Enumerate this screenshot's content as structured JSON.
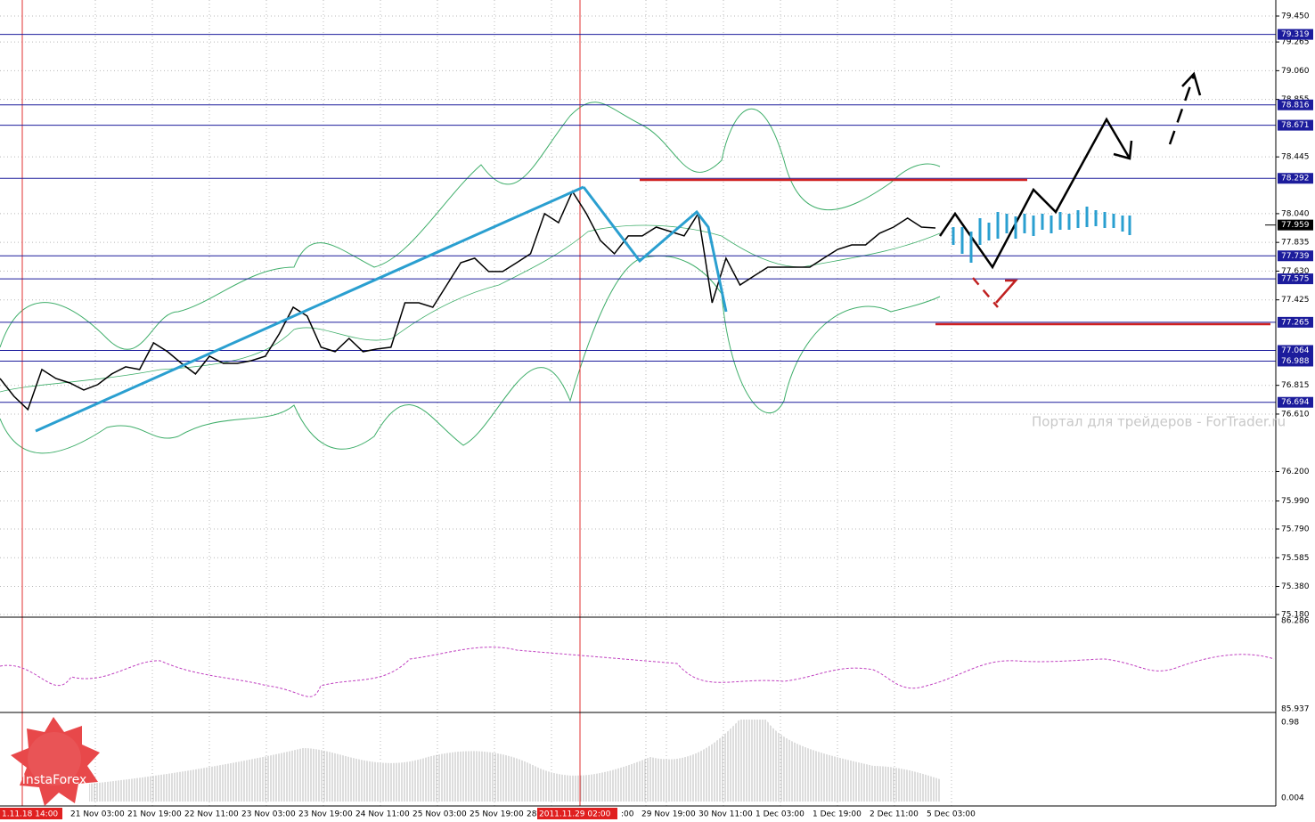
{
  "chart_data": {
    "type": "line",
    "values": [
      76.864,
      76.737,
      76.642,
      76.928,
      76.864,
      76.832,
      76.782,
      76.82,
      76.896,
      76.947,
      76.928,
      77.118,
      77.055,
      76.972,
      76.896,
      77.023,
      76.972,
      76.972,
      76.991,
      77.023,
      77.182,
      77.372,
      77.309,
      77.087,
      77.055,
      77.15,
      77.055,
      77.074,
      77.087,
      77.404,
      77.404,
      77.372,
      77.531,
      77.69,
      77.722,
      77.627,
      77.627,
      77.69,
      77.754,
      78.04,
      77.976,
      78.198,
      78.04,
      77.849,
      77.754,
      77.881,
      77.881,
      77.944,
      77.913,
      77.881,
      78.04,
      77.404,
      77.722,
      77.531,
      77.595,
      77.658,
      77.658,
      77.658,
      77.658,
      77.722,
      77.785,
      77.817,
      77.817,
      77.9,
      77.944,
      78.008,
      77.944,
      77.938
    ],
    "color": "#000000",
    "ylim": [
      75.18,
      79.45
    ],
    "yticks": [
      {
        "value": 79.45,
        "label": "79.450"
      },
      79.265,
      {
        "value": 79.06,
        "label": "79.060"
      },
      78.855,
      78.445,
      {
        "value": 78.04,
        "label": "78.040"
      },
      77.835,
      {
        "value": 77.63,
        "label": "77.630"
      },
      77.425,
      76.815,
      {
        "value": 76.61,
        "label": "76.610"
      },
      {
        "value": 76.2,
        "label": "76.200"
      },
      {
        "value": 75.99,
        "label": "75.990"
      },
      {
        "value": 75.79,
        "label": "75.790"
      },
      75.585,
      {
        "value": 75.38,
        "label": "75.380"
      },
      {
        "value": 75.18,
        "label": "75.180"
      }
    ],
    "levels": [
      79.319,
      78.816,
      78.671,
      78.292,
      77.739,
      77.575,
      77.265,
      77.064,
      76.988,
      76.694
    ],
    "current": 77.959,
    "x_labels": [
      "1.11.18 14:00",
      "21 Nov 03:00",
      "21 Nov 19:00",
      "22 Nov 11:00",
      "23 Nov 03:00",
      "23 Nov 19:00",
      "24 Nov 11:00",
      "25 Nov 03:00",
      "25 Nov 19:00",
      "28",
      "2011.11.29 02:00",
      ":00",
      "29 Nov 19:00",
      "30 Nov 11:00",
      "1 Dec 03:00",
      "1 Dec 19:00",
      "2 Dec 11:00",
      "5 Dec 03:00"
    ],
    "panel2_ticks": [
      86.286,
      85.937
    ],
    "panel3_ticks": [
      0.98,
      0.004
    ],
    "watermark": "Портал для трейдеров - ForTrader.ru",
    "logo": "InstaForex",
    "grid": true
  }
}
